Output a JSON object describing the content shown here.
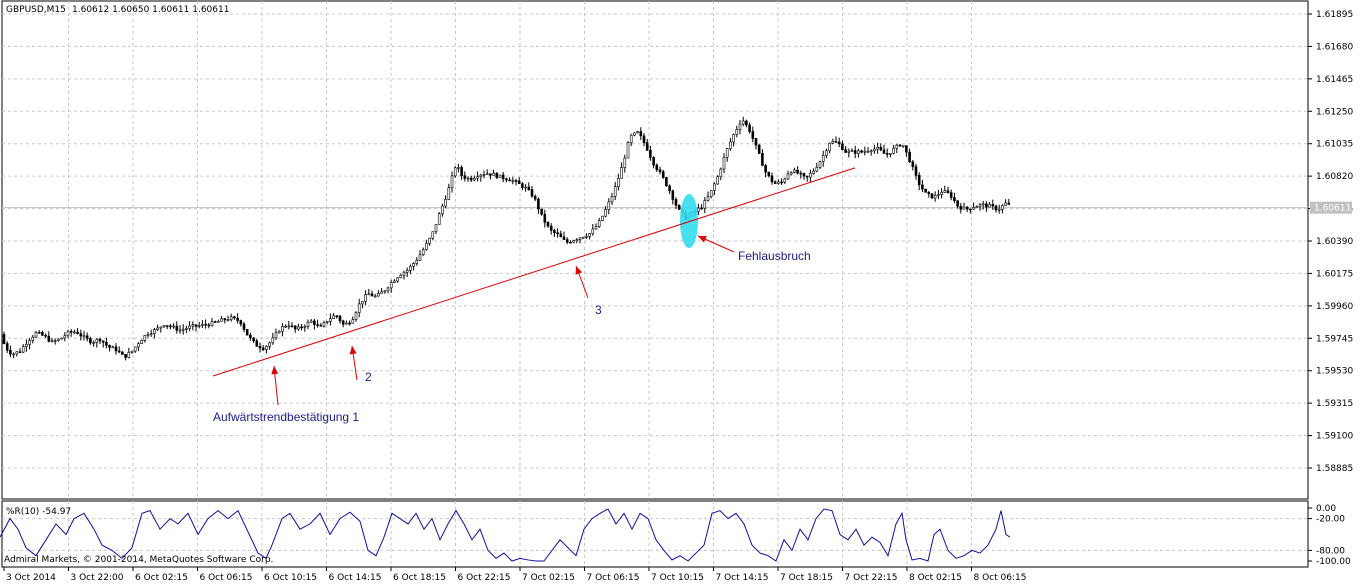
{
  "header": {
    "symbol": "GBPUSD,M15",
    "ohlc": "1.60612 1.60650 1.60611 1.60611"
  },
  "indicator": {
    "label": "%R(10) -54.97",
    "levels": [
      "0.00",
      "-20.00",
      "-80.00",
      "-100.00"
    ]
  },
  "copyright": "Admiral Markets, © 2001-2014, MetaQuotes Software Corp.",
  "current_price": "1.60611",
  "annotations": {
    "confirm1": "Aufwärtstrendbestätigung 1",
    "confirm2": "2",
    "confirm3": "3",
    "false_break": "Fehlausbruch"
  },
  "chart_data": {
    "type": "candlestick",
    "title": "GBPUSD,M15",
    "y_ticks": [
      1.61895,
      1.6168,
      1.61465,
      1.6125,
      1.61035,
      1.6082,
      1.60605,
      1.6039,
      1.60175,
      1.5996,
      1.59745,
      1.5953,
      1.59315,
      1.591,
      1.58885
    ],
    "y_tick_labels": [
      "1.61895",
      "1.61680",
      "1.61465",
      "1.61250",
      "1.61035",
      "1.60820",
      "1.60605",
      "1.60390",
      "1.60175",
      "1.59960",
      "1.59745",
      "1.59530",
      "1.59315",
      "1.59100",
      "1.58885"
    ],
    "ylim": [
      1.5874,
      1.6203
    ],
    "x_tick_labels": [
      "3 Oct 2014",
      "3 Oct 22:00",
      "6 Oct 02:15",
      "6 Oct 06:15",
      "6 Oct 10:15",
      "6 Oct 14:15",
      "6 Oct 18:15",
      "6 Oct 22:15",
      "7 Oct 02:15",
      "7 Oct 06:15",
      "7 Oct 10:15",
      "7 Oct 14:15",
      "7 Oct 18:15",
      "7 Oct 22:15",
      "8 Oct 02:15",
      "8 Oct 06:15"
    ],
    "price_path": [
      [
        0,
        1.5977
      ],
      [
        6,
        1.5968
      ],
      [
        12,
        1.5964
      ],
      [
        20,
        1.5966
      ],
      [
        28,
        1.5973
      ],
      [
        36,
        1.5978
      ],
      [
        44,
        1.5976
      ],
      [
        52,
        1.5972
      ],
      [
        60,
        1.5974
      ],
      [
        68,
        1.5978
      ],
      [
        76,
        1.5979
      ],
      [
        84,
        1.5975
      ],
      [
        92,
        1.5972
      ],
      [
        100,
        1.5974
      ],
      [
        108,
        1.5969
      ],
      [
        116,
        1.5967
      ],
      [
        124,
        1.5962
      ],
      [
        132,
        1.5966
      ],
      [
        140,
        1.5973
      ],
      [
        148,
        1.5978
      ],
      [
        156,
        1.598
      ],
      [
        164,
        1.5984
      ],
      [
        172,
        1.5982
      ],
      [
        180,
        1.598
      ],
      [
        190,
        1.5982
      ],
      [
        200,
        1.5983
      ],
      [
        210,
        1.5984
      ],
      [
        220,
        1.5986
      ],
      [
        230,
        1.5988
      ],
      [
        240,
        1.5986
      ],
      [
        248,
        1.5976
      ],
      [
        256,
        1.597
      ],
      [
        264,
        1.5968
      ],
      [
        272,
        1.5973
      ],
      [
        280,
        1.5981
      ],
      [
        288,
        1.5984
      ],
      [
        296,
        1.598
      ],
      [
        304,
        1.5983
      ],
      [
        312,
        1.5986
      ],
      [
        320,
        1.5981
      ],
      [
        328,
        1.5987
      ],
      [
        336,
        1.599
      ],
      [
        344,
        1.5983
      ],
      [
        352,
        1.5987
      ],
      [
        360,
        1.5998
      ],
      [
        368,
        1.6004
      ],
      [
        376,
        1.6002
      ],
      [
        384,
        1.6006
      ],
      [
        392,
        1.6012
      ],
      [
        400,
        1.6017
      ],
      [
        408,
        1.602
      ],
      [
        416,
        1.6026
      ],
      [
        424,
        1.6034
      ],
      [
        432,
        1.6043
      ],
      [
        440,
        1.6058
      ],
      [
        448,
        1.6072
      ],
      [
        456,
        1.609
      ],
      [
        462,
        1.6082
      ],
      [
        470,
        1.608
      ],
      [
        478,
        1.6083
      ],
      [
        486,
        1.6084
      ],
      [
        494,
        1.6083
      ],
      [
        502,
        1.6081
      ],
      [
        510,
        1.608
      ],
      [
        518,
        1.6077
      ],
      [
        526,
        1.6074
      ],
      [
        534,
        1.6068
      ],
      [
        542,
        1.6055
      ],
      [
        550,
        1.6046
      ],
      [
        558,
        1.6043
      ],
      [
        566,
        1.6038
      ],
      [
        574,
        1.604
      ],
      [
        582,
        1.6042
      ],
      [
        590,
        1.6044
      ],
      [
        598,
        1.605
      ],
      [
        606,
        1.606
      ],
      [
        614,
        1.6072
      ],
      [
        622,
        1.6088
      ],
      [
        630,
        1.6108
      ],
      [
        638,
        1.6111
      ],
      [
        646,
        1.6102
      ],
      [
        654,
        1.609
      ],
      [
        662,
        1.6082
      ],
      [
        670,
        1.6072
      ],
      [
        678,
        1.606
      ],
      [
        686,
        1.6054
      ],
      [
        694,
        1.6058
      ],
      [
        702,
        1.6062
      ],
      [
        710,
        1.607
      ],
      [
        718,
        1.6082
      ],
      [
        726,
        1.6098
      ],
      [
        734,
        1.611
      ],
      [
        742,
        1.612
      ],
      [
        750,
        1.6112
      ],
      [
        758,
        1.6098
      ],
      [
        766,
        1.6084
      ],
      [
        774,
        1.6077
      ],
      [
        782,
        1.6078
      ],
      [
        790,
        1.6086
      ],
      [
        798,
        1.6084
      ],
      [
        806,
        1.608
      ],
      [
        814,
        1.6086
      ],
      [
        822,
        1.6094
      ],
      [
        830,
        1.6105
      ],
      [
        838,
        1.6104
      ],
      [
        846,
        1.6098
      ],
      [
        854,
        1.6098
      ],
      [
        862,
        1.6098
      ],
      [
        870,
        1.61
      ],
      [
        878,
        1.61
      ],
      [
        886,
        1.6096
      ],
      [
        894,
        1.61
      ],
      [
        902,
        1.6104
      ],
      [
        910,
        1.6092
      ],
      [
        918,
        1.6078
      ],
      [
        926,
        1.607
      ],
      [
        934,
        1.6068
      ],
      [
        942,
        1.6072
      ],
      [
        950,
        1.607
      ],
      [
        958,
        1.6062
      ],
      [
        966,
        1.606
      ],
      [
        974,
        1.6062
      ],
      [
        982,
        1.6063
      ],
      [
        990,
        1.6062
      ],
      [
        998,
        1.606
      ],
      [
        1006,
        1.6064
      ],
      [
        1012,
        1.6061
      ]
    ],
    "trendline": [
      [
        213,
        1.59495
      ],
      [
        855,
        1.60875
      ]
    ],
    "wpr_ylim": [
      -100,
      0
    ],
    "wpr_path": [
      [
        0,
        -55
      ],
      [
        10,
        -20
      ],
      [
        18,
        -40
      ],
      [
        26,
        -75
      ],
      [
        36,
        -90
      ],
      [
        46,
        -60
      ],
      [
        56,
        -30
      ],
      [
        66,
        -50
      ],
      [
        74,
        -20
      ],
      [
        84,
        -10
      ],
      [
        94,
        -40
      ],
      [
        102,
        -70
      ],
      [
        112,
        -80
      ],
      [
        122,
        -95
      ],
      [
        132,
        -75
      ],
      [
        142,
        -10
      ],
      [
        150,
        -5
      ],
      [
        160,
        -40
      ],
      [
        170,
        -20
      ],
      [
        178,
        -30
      ],
      [
        188,
        -10
      ],
      [
        198,
        -50
      ],
      [
        208,
        -20
      ],
      [
        218,
        -5
      ],
      [
        228,
        -20
      ],
      [
        238,
        -5
      ],
      [
        248,
        -45
      ],
      [
        258,
        -85
      ],
      [
        266,
        -95
      ],
      [
        272,
        -70
      ],
      [
        282,
        -20
      ],
      [
        290,
        -10
      ],
      [
        300,
        -40
      ],
      [
        310,
        -30
      ],
      [
        320,
        -10
      ],
      [
        330,
        -50
      ],
      [
        340,
        -20
      ],
      [
        350,
        -8
      ],
      [
        360,
        -25
      ],
      [
        368,
        -80
      ],
      [
        376,
        -90
      ],
      [
        384,
        -55
      ],
      [
        392,
        -10
      ],
      [
        400,
        -20
      ],
      [
        408,
        -30
      ],
      [
        416,
        -10
      ],
      [
        424,
        -40
      ],
      [
        432,
        -20
      ],
      [
        440,
        -60
      ],
      [
        448,
        -30
      ],
      [
        456,
        -5
      ],
      [
        464,
        -30
      ],
      [
        472,
        -60
      ],
      [
        480,
        -40
      ],
      [
        488,
        -80
      ],
      [
        496,
        -95
      ],
      [
        504,
        -85
      ],
      [
        512,
        -100
      ],
      [
        520,
        -95
      ],
      [
        528,
        -98
      ],
      [
        536,
        -100
      ],
      [
        544,
        -100
      ],
      [
        552,
        -80
      ],
      [
        560,
        -60
      ],
      [
        568,
        -75
      ],
      [
        576,
        -90
      ],
      [
        584,
        -40
      ],
      [
        592,
        -20
      ],
      [
        600,
        -10
      ],
      [
        608,
        -2
      ],
      [
        616,
        -30
      ],
      [
        624,
        -10
      ],
      [
        632,
        -40
      ],
      [
        640,
        -10
      ],
      [
        648,
        -20
      ],
      [
        656,
        -60
      ],
      [
        664,
        -80
      ],
      [
        672,
        -98
      ],
      [
        680,
        -90
      ],
      [
        688,
        -100
      ],
      [
        696,
        -85
      ],
      [
        704,
        -70
      ],
      [
        712,
        -10
      ],
      [
        720,
        -5
      ],
      [
        728,
        -20
      ],
      [
        736,
        -10
      ],
      [
        744,
        -30
      ],
      [
        752,
        -70
      ],
      [
        760,
        -85
      ],
      [
        768,
        -90
      ],
      [
        776,
        -100
      ],
      [
        784,
        -60
      ],
      [
        792,
        -80
      ],
      [
        800,
        -40
      ],
      [
        808,
        -60
      ],
      [
        816,
        -20
      ],
      [
        824,
        -2
      ],
      [
        832,
        -5
      ],
      [
        840,
        -50
      ],
      [
        848,
        -60
      ],
      [
        856,
        -40
      ],
      [
        864,
        -70
      ],
      [
        872,
        -55
      ],
      [
        880,
        -65
      ],
      [
        888,
        -90
      ],
      [
        896,
        -30
      ],
      [
        902,
        -10
      ],
      [
        906,
        -60
      ],
      [
        912,
        -98
      ],
      [
        920,
        -95
      ],
      [
        928,
        -100
      ],
      [
        934,
        -50
      ],
      [
        940,
        -40
      ],
      [
        948,
        -80
      ],
      [
        956,
        -95
      ],
      [
        964,
        -90
      ],
      [
        972,
        -80
      ],
      [
        980,
        -85
      ],
      [
        988,
        -70
      ],
      [
        996,
        -40
      ],
      [
        1001,
        -5
      ],
      [
        1006,
        -50
      ],
      [
        1010,
        -55
      ]
    ]
  }
}
